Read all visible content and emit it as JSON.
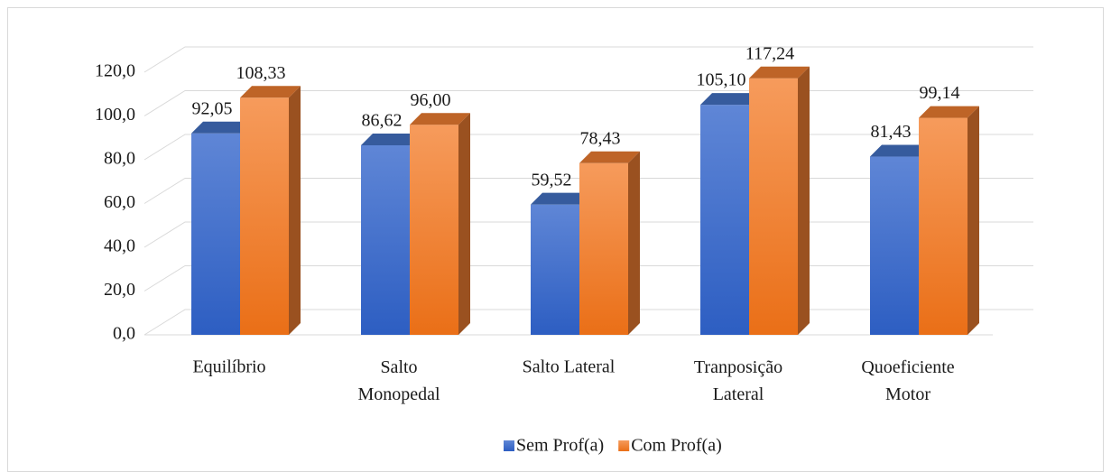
{
  "chart_data": {
    "type": "bar3d",
    "categories": [
      "Equilíbrio",
      "Salto\nMonopedal",
      "Salto Lateral",
      "Tranposição\nLateral",
      "Quoeficiente\nMotor"
    ],
    "series": [
      {
        "name": "Sem Prof(a)",
        "color": "#4472c4",
        "values": [
          92.05,
          86.62,
          59.52,
          105.1,
          81.43
        ],
        "value_labels": [
          "92,05",
          "86,62",
          "59,52",
          "105,10",
          "81,43"
        ]
      },
      {
        "name": "Com Prof(a)",
        "color": "#ed7d31",
        "values": [
          108.33,
          96.0,
          78.43,
          117.24,
          99.14
        ],
        "value_labels": [
          "108,33",
          "96,00",
          "78,43",
          "117,24",
          "99,14"
        ]
      }
    ],
    "ylim": [
      0,
      120
    ],
    "yticks": [
      {
        "value": 0,
        "label": "0,0"
      },
      {
        "value": 20,
        "label": "20,0"
      },
      {
        "value": 40,
        "label": "40,0"
      },
      {
        "value": 60,
        "label": "60,0"
      },
      {
        "value": 80,
        "label": "80,0"
      },
      {
        "value": 100,
        "label": "100,0"
      },
      {
        "value": 120,
        "label": "120,0"
      }
    ],
    "grid": true,
    "legend": "bottom"
  }
}
